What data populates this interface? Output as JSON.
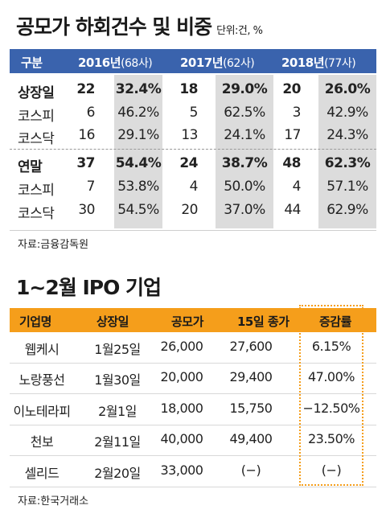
{
  "table1": {
    "title": "공모가 하회건수 및 비중",
    "unit": "단위:건, %",
    "header": {
      "category": "구분",
      "years": [
        {
          "year": "2016년",
          "count": "(68사)"
        },
        {
          "year": "2017년",
          "count": "(62사)"
        },
        {
          "year": "2018년",
          "count": "(77사)"
        }
      ]
    },
    "groups": [
      {
        "rows": [
          {
            "label": "상장일",
            "bold": true,
            "cells": [
              "22",
              "32.4%",
              "18",
              "29.0%",
              "20",
              "26.0%"
            ]
          },
          {
            "label": "코스피",
            "bold": false,
            "cells": [
              "6",
              "46.2%",
              "5",
              "62.5%",
              "3",
              "42.9%"
            ]
          },
          {
            "label": "코스닥",
            "bold": false,
            "cells": [
              "16",
              "29.1%",
              "13",
              "24.1%",
              "17",
              "24.3%"
            ]
          }
        ]
      },
      {
        "rows": [
          {
            "label": "연말",
            "bold": true,
            "cells": [
              "37",
              "54.4%",
              "24",
              "38.7%",
              "48",
              "62.3%"
            ]
          },
          {
            "label": "코스피",
            "bold": false,
            "cells": [
              "7",
              "53.8%",
              "4",
              "50.0%",
              "4",
              "57.1%"
            ]
          },
          {
            "label": "코스닥",
            "bold": false,
            "cells": [
              "30",
              "54.5%",
              "20",
              "37.0%",
              "44",
              "62.9%"
            ]
          }
        ]
      }
    ],
    "source": "자료:금융감독원"
  },
  "table2": {
    "title": "1~2월 IPO 기업",
    "headers": [
      "기업명",
      "상장일",
      "공모가",
      "15일 종가",
      "증감률"
    ],
    "rows": [
      [
        "웹케시",
        "1월25일",
        "26,000",
        "27,600",
        "6.15%"
      ],
      [
        "노랑풍선",
        "1월30일",
        "20,000",
        "29,400",
        "47.00%"
      ],
      [
        "이노테라피",
        "2월1일",
        "18,000",
        "15,750",
        "−12.50%"
      ],
      [
        "천보",
        "2월11일",
        "40,000",
        "49,400",
        "23.50%"
      ],
      [
        "셀리드",
        "2월20일",
        "33,000",
        "(−)",
        "(−)"
      ]
    ],
    "source": "자료:한국거래소",
    "highlight_color": "#f59e1b"
  },
  "colors": {
    "header_blue": "#3a63ad",
    "header_orange": "#f59e1b",
    "shade": "#dcdcdc"
  }
}
